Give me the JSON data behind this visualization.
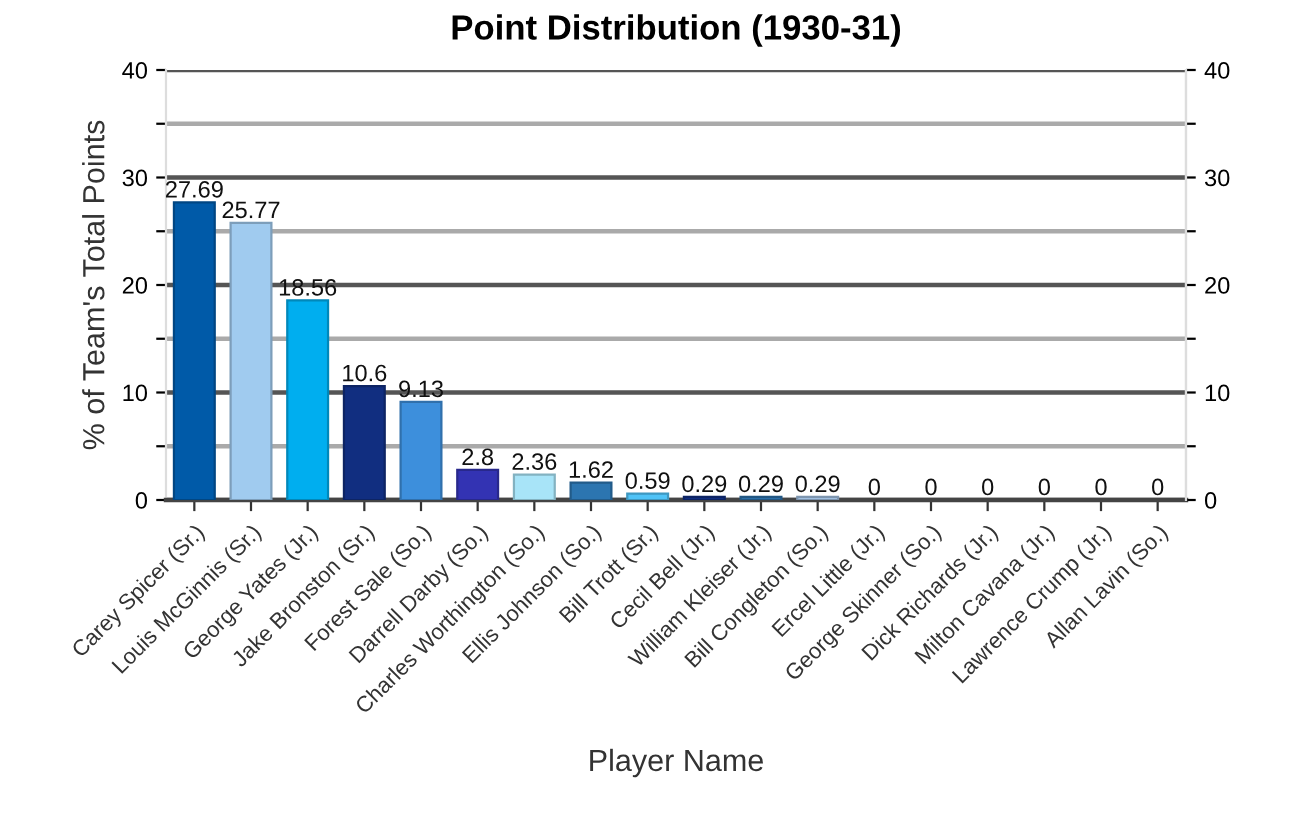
{
  "chart_data": {
    "type": "bar",
    "title": "Point Distribution (1930-31)",
    "xlabel": "Player Name",
    "ylabel": "% of Team's Total Points",
    "categories": [
      "Carey Spicer (Sr.)",
      "Louis McGinnis (Sr.)",
      "George Yates (Jr.)",
      "Jake Bronston (Sr.)",
      "Forest Sale (So.)",
      "Darrell Darby (So.)",
      "Charles Worthington (So.)",
      "Ellis Johnson (So.)",
      "Bill Trott (Sr.)",
      "Cecil Bell (Jr.)",
      "William Kleiser (Jr.)",
      "Bill Congleton (So.)",
      "Ercel Little (Jr.)",
      "George Skinner (So.)",
      "Dick Richards (Jr.)",
      "Milton Cavana (Jr.)",
      "Lawrence Crump (Jr.)",
      "Allan Lavin (So.)"
    ],
    "values": [
      27.69,
      25.77,
      18.56,
      10.6,
      9.13,
      2.8,
      2.36,
      1.62,
      0.59,
      0.29,
      0.29,
      0.29,
      0,
      0,
      0,
      0,
      0,
      0
    ],
    "colors": [
      "#005aa8",
      "#a0cbef",
      "#00aeef",
      "#112e80",
      "#3d8fdc",
      "#3333b3",
      "#a8e4f8",
      "#2c75b0",
      "#4fc3f7",
      "#112e80",
      "#2c6fa8",
      "#a0bfe0",
      null,
      null,
      null,
      null,
      null,
      null
    ],
    "ylim": [
      0,
      40
    ],
    "yticks": [
      0,
      {
        "value": 5,
        "label": null
      },
      10,
      {
        "value": 15,
        "label": null
      },
      20,
      {
        "value": 25,
        "label": null
      },
      30,
      {
        "value": 35,
        "label": null
      },
      40
    ],
    "y2lim": [
      0,
      40
    ],
    "y2ticks": [
      0,
      {
        "value": 5,
        "label": null
      },
      10,
      {
        "value": 15,
        "label": null
      },
      20,
      {
        "value": 25,
        "label": null
      },
      30,
      {
        "value": 35,
        "label": null
      },
      40
    ],
    "grid": "y",
    "data_labels": true
  }
}
